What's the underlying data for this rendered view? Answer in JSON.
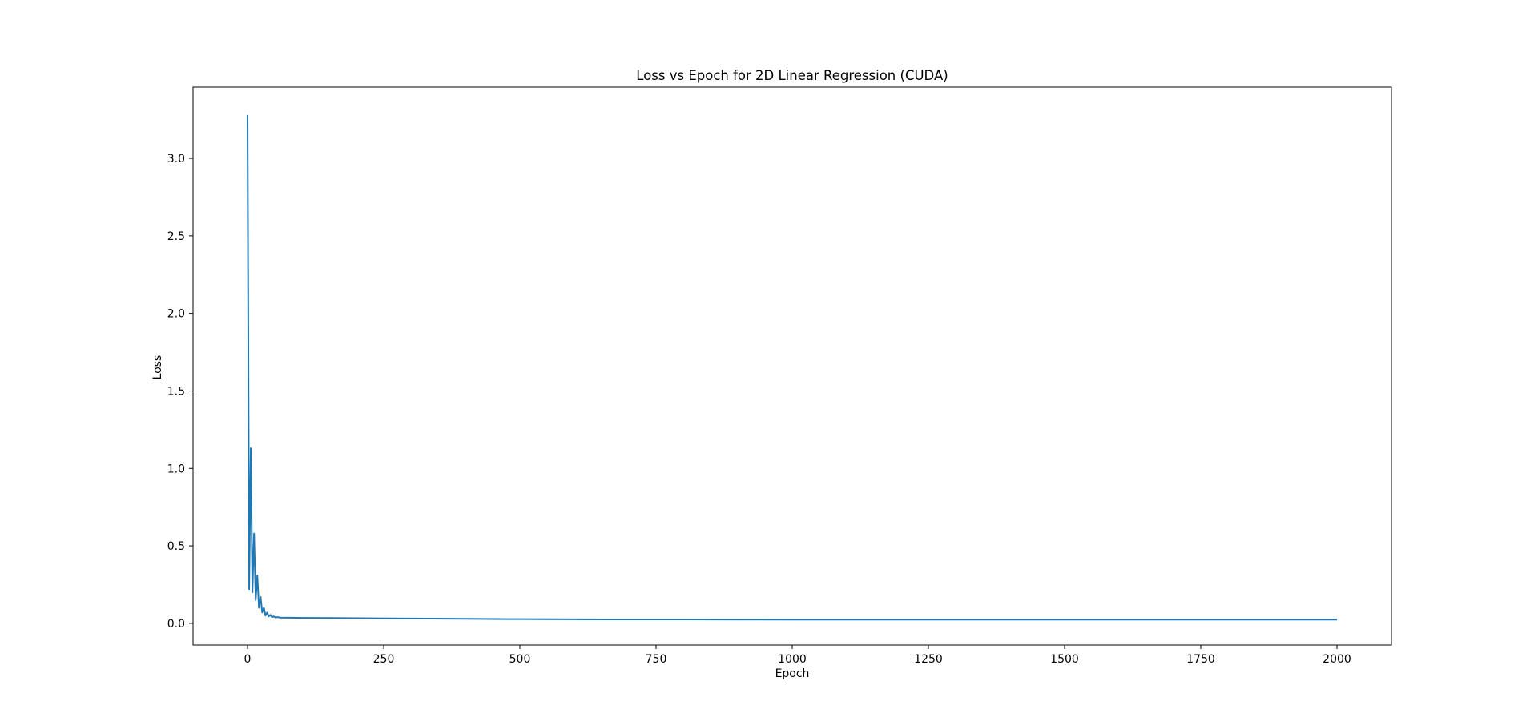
{
  "chart_data": {
    "type": "line",
    "title": "Loss vs Epoch for 2D Linear Regression (CUDA)",
    "xlabel": "Epoch",
    "ylabel": "Loss",
    "xlim": [
      -100,
      2100
    ],
    "ylim": [
      -0.14,
      3.46
    ],
    "xticks": [
      0,
      250,
      500,
      750,
      1000,
      1250,
      1500,
      1750,
      2000
    ],
    "xtick_labels": [
      "0",
      "250",
      "500",
      "750",
      "1000",
      "1250",
      "1500",
      "1750",
      "2000"
    ],
    "yticks": [
      0.0,
      0.5,
      1.0,
      1.5,
      2.0,
      2.5,
      3.0
    ],
    "ytick_labels": [
      "0.0",
      "0.5",
      "1.0",
      "1.5",
      "2.0",
      "2.5",
      "3.0"
    ],
    "grid": false,
    "legend": "none",
    "series": [
      {
        "color": "#1f77b4",
        "x": [
          0,
          3,
          6,
          9,
          12,
          15,
          18,
          21,
          24,
          27,
          30,
          33,
          36,
          39,
          42,
          45,
          48,
          51,
          55,
          60,
          70,
          80,
          100,
          150,
          200,
          300,
          400,
          500,
          600,
          700,
          800,
          1000,
          1200,
          1500,
          1750,
          2000
        ],
        "y": [
          3.28,
          0.22,
          1.13,
          0.2,
          0.58,
          0.15,
          0.31,
          0.1,
          0.17,
          0.07,
          0.1,
          0.05,
          0.07,
          0.045,
          0.055,
          0.04,
          0.045,
          0.038,
          0.04,
          0.037,
          0.036,
          0.036,
          0.035,
          0.034,
          0.033,
          0.031,
          0.029,
          0.027,
          0.026,
          0.025,
          0.025,
          0.024,
          0.024,
          0.024,
          0.024,
          0.024
        ]
      }
    ]
  }
}
